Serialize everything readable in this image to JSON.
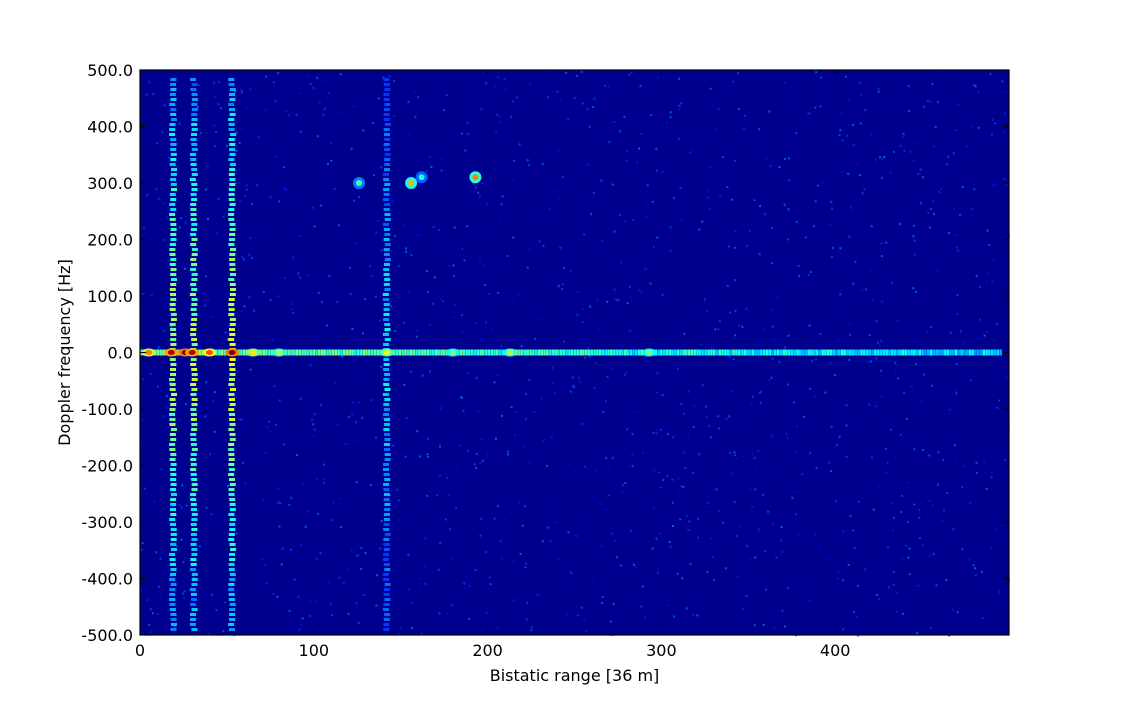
{
  "chart_data": {
    "type": "heatmap",
    "xlabel": "Bistatic range [36 m]",
    "ylabel": "Doppler frequency [Hz]",
    "xlim": [
      0,
      500
    ],
    "ylim": [
      -500,
      500
    ],
    "x_ticks": [
      0,
      100,
      200,
      300,
      400
    ],
    "x_tick_labels": [
      "0",
      "100",
      "200",
      "300",
      "400"
    ],
    "y_ticks": [
      500,
      400,
      300,
      200,
      100,
      0,
      -100,
      -200,
      -300,
      -400,
      -500
    ],
    "y_tick_labels": [
      "500.0",
      "400.0",
      "300.0",
      "200.0",
      "100.0",
      "0.0",
      "-100.0",
      "-200.0",
      "-300.0",
      "-400.0",
      "-500.0"
    ],
    "colormap": "jet",
    "background_color": "#00008f",
    "zero_doppler_ridge": {
      "doppler_hz": 0,
      "range_start": 0,
      "range_end": 495
    },
    "clutter_columns": [
      {
        "range": 19,
        "intensity": 0.55
      },
      {
        "range": 31,
        "intensity": 0.55
      },
      {
        "range": 53,
        "intensity": 0.6
      },
      {
        "range": 142,
        "intensity": 0.35
      }
    ],
    "hotspots": [
      {
        "range": 5,
        "doppler": 0,
        "intensity": 0.75
      },
      {
        "range": 18,
        "doppler": 0,
        "intensity": 0.95
      },
      {
        "range": 26,
        "doppler": 0,
        "intensity": 1.0
      },
      {
        "range": 30,
        "doppler": 0,
        "intensity": 0.95
      },
      {
        "range": 40,
        "doppler": 0,
        "intensity": 0.8
      },
      {
        "range": 53,
        "doppler": 0,
        "intensity": 1.0
      },
      {
        "range": 65,
        "doppler": 0,
        "intensity": 0.65
      },
      {
        "range": 80,
        "doppler": 0,
        "intensity": 0.55
      },
      {
        "range": 142,
        "doppler": 0,
        "intensity": 0.6
      },
      {
        "range": 180,
        "doppler": 0,
        "intensity": 0.5
      },
      {
        "range": 213,
        "doppler": 0,
        "intensity": 0.55
      },
      {
        "range": 293,
        "doppler": 0,
        "intensity": 0.5
      }
    ],
    "targets": [
      {
        "range": 126,
        "doppler": 300,
        "intensity": 0.45
      },
      {
        "range": 156,
        "doppler": 300,
        "intensity": 0.7
      },
      {
        "range": 162,
        "doppler": 310,
        "intensity": 0.4
      },
      {
        "range": 193,
        "doppler": 310,
        "intensity": 0.75
      }
    ],
    "grid": false,
    "legend": "none"
  }
}
